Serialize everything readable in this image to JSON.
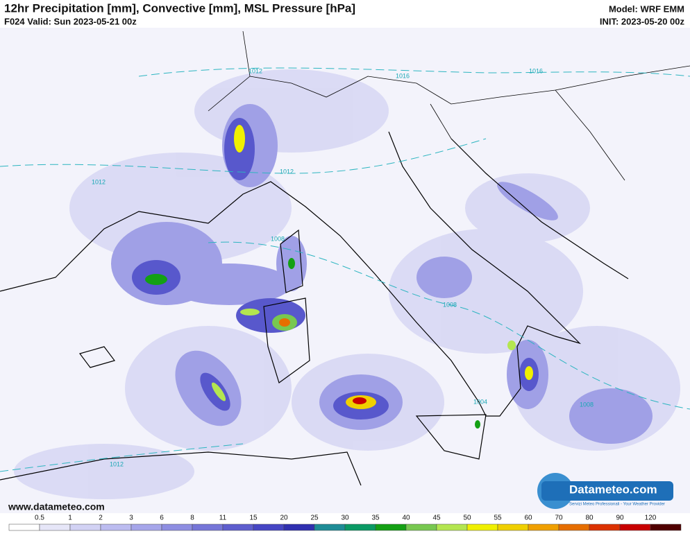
{
  "header": {
    "title": "12hr Precipitation [mm], Convective [mm], MSL Pressure [hPa]",
    "valid": "F024 Valid: Sun 2023-05-21 00z",
    "model": "Model: WRF EMM",
    "init": "INIT: 2023-05-20 00z"
  },
  "isobars": [
    "1012",
    "1016",
    "1016",
    "1012",
    "1012",
    "1008",
    "1008",
    "1004",
    "1008",
    "1012"
  ],
  "footer": {
    "website": "www.datameteo.com",
    "logo": "Datameteo.com",
    "logo_tagline": "Servizi Meteo Professionali - Your Weather Provider"
  },
  "legend": {
    "labels": [
      0.5,
      1,
      2,
      3,
      6,
      8,
      11,
      15,
      20,
      25,
      30,
      35,
      40,
      45,
      50,
      55,
      60,
      70,
      80,
      90,
      120
    ],
    "colors": [
      "#ffffff",
      "#e6e6f8",
      "#d2d2f4",
      "#bcbcf0",
      "#a6a6ea",
      "#8e8ee2",
      "#7676d8",
      "#5e5ece",
      "#4646c4",
      "#3030b0",
      "#1e8c96",
      "#0a9a64",
      "#14a014",
      "#78c850",
      "#b4e650",
      "#f0f000",
      "#f0d000",
      "#f0a000",
      "#e66e00",
      "#dc3200",
      "#c80000",
      "#500000"
    ]
  }
}
